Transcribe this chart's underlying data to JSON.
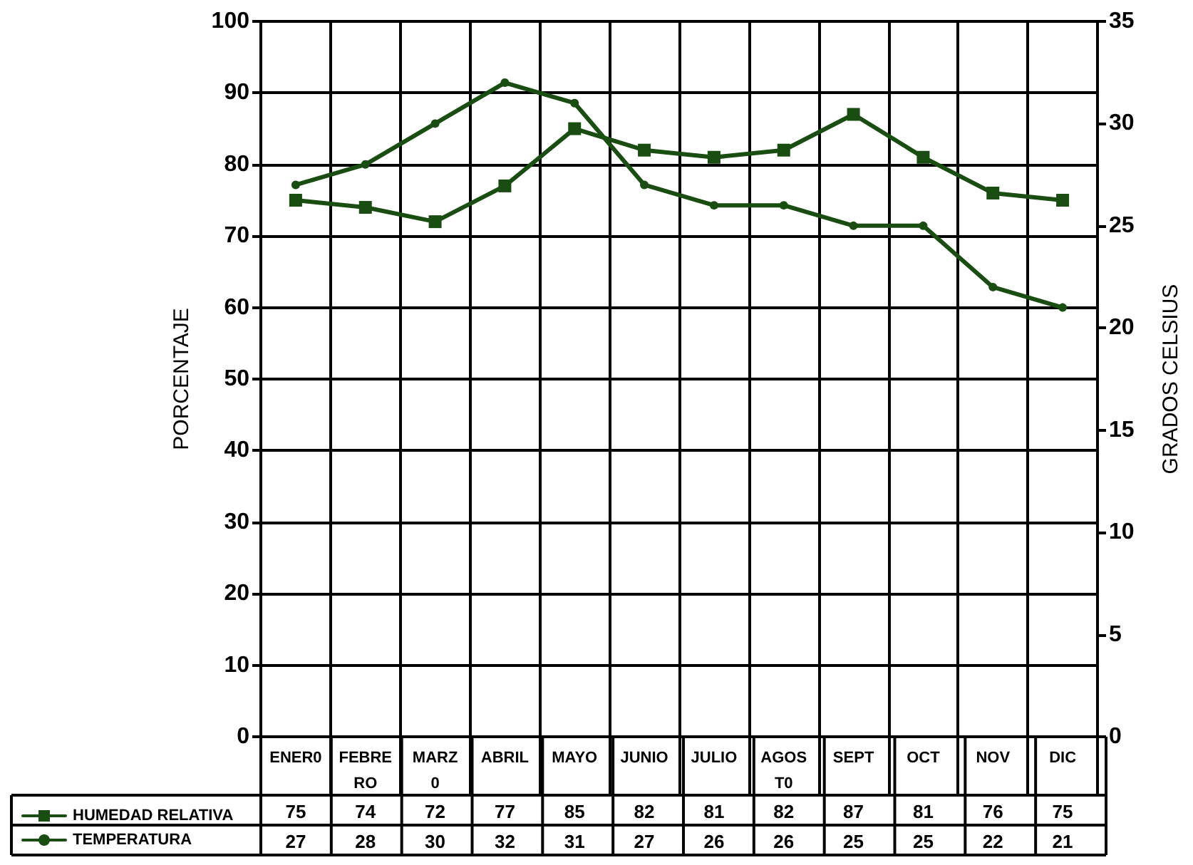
{
  "chart_data": {
    "type": "line",
    "ylabel": "PORCENTAJE",
    "y2label": "GRADOS CELSIUS",
    "categories": [
      "ENER0",
      "FEBRERO",
      "MARZ0",
      "ABRIL",
      "MAYO",
      "JUNIO",
      "JULIO",
      "AGOST0",
      "SEPT",
      "OCT",
      "NOV",
      "DIC"
    ],
    "series": [
      {
        "name": "HUMEDAD RELATIVA",
        "color": "#1a4d12",
        "marker": "square",
        "values": [
          75,
          74,
          72,
          77,
          85,
          82,
          81,
          82,
          87,
          81,
          76,
          75
        ]
      },
      {
        "name": "TEMPERATURA",
        "color": "#1a4d12",
        "marker": "circle",
        "axis": "y2",
        "values": [
          27,
          28,
          30,
          32,
          31,
          27,
          26,
          26,
          25,
          25,
          22,
          21
        ]
      }
    ],
    "ylim": [
      0,
      100
    ],
    "yticks": [
      0,
      10,
      20,
      30,
      40,
      50,
      60,
      70,
      80,
      90,
      100
    ],
    "y2lim": [
      0,
      35
    ],
    "y2ticks": [
      0,
      5,
      10,
      15,
      20,
      25,
      30,
      35
    ],
    "grid": true,
    "legend": "bottom left",
    "data_labels": true,
    "line_style": "solid"
  }
}
